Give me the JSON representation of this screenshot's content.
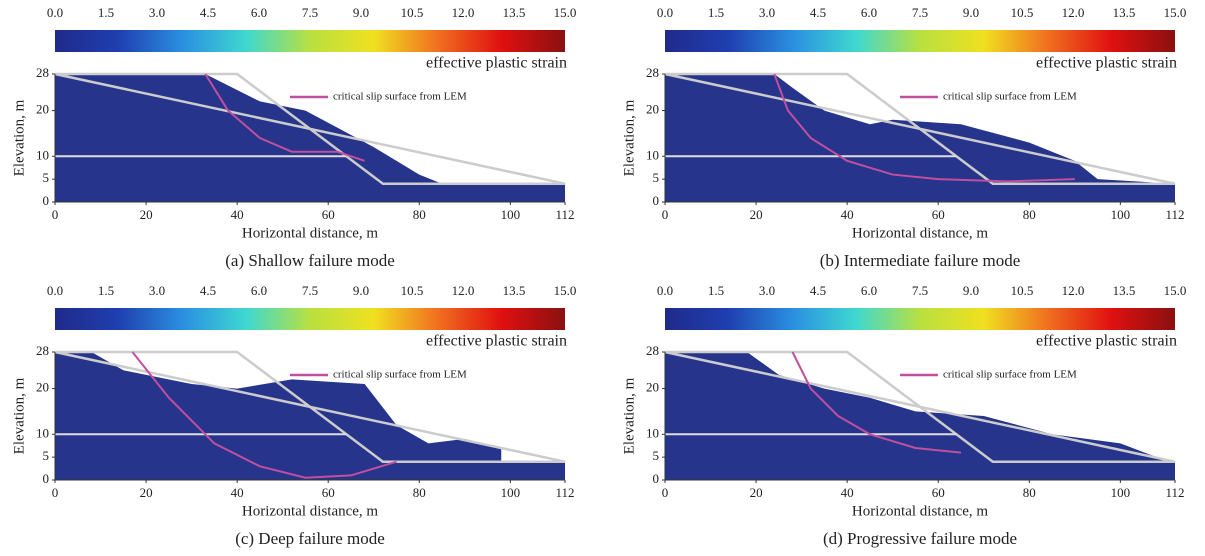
{
  "chart_data": [
    {
      "type": "line",
      "caption": "(a) Shallow failure mode",
      "x_label": "Horizontal distance, m",
      "y_label": "Elevation, m",
      "xlim": [
        0,
        112
      ],
      "ylim": [
        0,
        28
      ],
      "xticks": [
        0,
        20,
        40,
        60,
        80,
        100,
        112
      ],
      "yticks": [
        0,
        5,
        10,
        20,
        28
      ],
      "colorbar": {
        "label": "effective plastic strain",
        "lim": [
          0,
          15
        ],
        "colors": [
          "#1f2a8a",
          "#1f3fb0",
          "#2a8fe0",
          "#3fd8d0",
          "#b8e040",
          "#f0e020",
          "#f07020",
          "#e01010",
          "#8a1010"
        ],
        "ticks": [
          {
            "value": 0,
            "label": "0.0"
          },
          1.5,
          {
            "value": 3,
            "label": "3.0"
          },
          4.5,
          {
            "value": 6,
            "label": "6.0"
          },
          7.5,
          {
            "value": 9,
            "label": "9.0"
          },
          10.5,
          {
            "value": 12,
            "label": "12.0"
          },
          13.5,
          {
            "value": 15,
            "label": "15.0"
          }
        ]
      },
      "mass": {
        "color": "#26348c",
        "x": [
          0,
          112,
          112,
          85,
          80,
          70,
          55,
          45,
          33,
          0
        ],
        "values": [
          0,
          0,
          4,
          4,
          6,
          12,
          20,
          22,
          28,
          28
        ]
      },
      "outline": {
        "color": "#cccccc",
        "x": [
          0,
          40,
          72,
          112
        ],
        "values": [
          28,
          28,
          4,
          4
        ]
      },
      "interface": {
        "color": "#dddddd",
        "x": [
          0,
          64
        ],
        "values": [
          10,
          10
        ]
      },
      "series": [
        {
          "name": "critical slip surface from LEM",
          "color": "#c04fa0",
          "x": [
            33,
            38,
            45,
            52,
            62,
            68
          ],
          "values": [
            28,
            20,
            14,
            11,
            11,
            9
          ]
        }
      ]
    },
    {
      "type": "line",
      "caption": "(b) Intermediate failure mode",
      "x_label": "Horizontal distance, m",
      "y_label": "Elevation, m",
      "xlim": [
        0,
        112
      ],
      "ylim": [
        0,
        28
      ],
      "xticks": [
        0,
        20,
        40,
        60,
        80,
        100,
        112
      ],
      "yticks": [
        0,
        5,
        10,
        20,
        28
      ],
      "colorbar": {
        "label": "effective plastic strain",
        "lim": [
          0,
          15
        ],
        "colors": [
          "#1f2a8a",
          "#1f3fb0",
          "#2a8fe0",
          "#3fd8d0",
          "#b8e040",
          "#f0e020",
          "#f07020",
          "#e01010",
          "#8a1010"
        ],
        "ticks": [
          {
            "value": 0,
            "label": "0.0"
          },
          1.5,
          {
            "value": 3,
            "label": "3.0"
          },
          4.5,
          {
            "value": 6,
            "label": "6.0"
          },
          7.5,
          {
            "value": 9,
            "label": "9.0"
          },
          10.5,
          {
            "value": 12,
            "label": "12.0"
          },
          13.5,
          {
            "value": 15,
            "label": "15.0"
          }
        ]
      },
      "mass": {
        "color": "#26348c",
        "x": [
          0,
          112,
          112,
          95,
          90,
          80,
          65,
          50,
          45,
          35,
          28,
          24,
          0
        ],
        "values": [
          0,
          0,
          4,
          5,
          9,
          13,
          17,
          18,
          17,
          20,
          25,
          28,
          28
        ]
      },
      "outline": {
        "color": "#cccccc",
        "x": [
          0,
          40,
          72,
          112
        ],
        "values": [
          28,
          28,
          4,
          4
        ]
      },
      "interface": {
        "color": "#dddddd",
        "x": [
          0,
          64
        ],
        "values": [
          10,
          10
        ]
      },
      "series": [
        {
          "name": "critical slip surface from LEM",
          "color": "#c04fa0",
          "x": [
            24,
            27,
            32,
            40,
            50,
            60,
            75,
            90
          ],
          "values": [
            28,
            20,
            14,
            9,
            6,
            5,
            4.5,
            5
          ]
        }
      ]
    },
    {
      "type": "line",
      "caption": "(c) Deep failure mode",
      "x_label": "Horizontal distance, m",
      "y_label": "Elevation, m",
      "xlim": [
        0,
        112
      ],
      "ylim": [
        0,
        28
      ],
      "xticks": [
        0,
        20,
        40,
        60,
        80,
        100,
        112
      ],
      "yticks": [
        0,
        5,
        10,
        20,
        28
      ],
      "colorbar": {
        "label": "effective plastic strain",
        "lim": [
          0,
          15
        ],
        "colors": [
          "#1f2a8a",
          "#1f3fb0",
          "#2a8fe0",
          "#3fd8d0",
          "#b8e040",
          "#f0e020",
          "#f07020",
          "#e01010",
          "#8a1010"
        ],
        "ticks": [
          {
            "value": 0,
            "label": "0.0"
          },
          1.5,
          {
            "value": 3,
            "label": "3.0"
          },
          4.5,
          {
            "value": 6,
            "label": "6.0"
          },
          7.5,
          {
            "value": 9,
            "label": "9.0"
          },
          10.5,
          {
            "value": 12,
            "label": "12.0"
          },
          13.5,
          {
            "value": 15,
            "label": "15.0"
          }
        ]
      },
      "mass": {
        "color": "#26348c",
        "x": [
          0,
          112,
          112,
          98,
          98,
          90,
          82,
          75,
          68,
          52,
          40,
          30,
          15,
          8,
          0
        ],
        "values": [
          0,
          0,
          4,
          4,
          7,
          9,
          8,
          12,
          21,
          22,
          20,
          21,
          24,
          28,
          28
        ]
      },
      "outline": {
        "color": "#cccccc",
        "x": [
          0,
          40,
          72,
          112
        ],
        "values": [
          28,
          28,
          4,
          4
        ]
      },
      "interface": {
        "color": "#dddddd",
        "x": [
          0,
          64
        ],
        "values": [
          10,
          10
        ]
      },
      "series": [
        {
          "name": "critical slip surface from LEM",
          "color": "#c04fa0",
          "x": [
            17,
            25,
            35,
            45,
            55,
            65,
            75
          ],
          "values": [
            28,
            18,
            8,
            3,
            0.5,
            1,
            4
          ]
        }
      ]
    },
    {
      "type": "line",
      "caption": "(d) Progressive failure mode",
      "x_label": "Horizontal distance, m",
      "y_label": "Elevation, m",
      "xlim": [
        0,
        112
      ],
      "ylim": [
        0,
        28
      ],
      "xticks": [
        0,
        20,
        40,
        60,
        80,
        100,
        112
      ],
      "yticks": [
        0,
        5,
        10,
        20,
        28
      ],
      "colorbar": {
        "label": "effective plastic strain",
        "lim": [
          0,
          15
        ],
        "colors": [
          "#1f2a8a",
          "#1f3fb0",
          "#2a8fe0",
          "#3fd8d0",
          "#b8e040",
          "#f0e020",
          "#f07020",
          "#e01010",
          "#8a1010"
        ],
        "ticks": [
          {
            "value": 0,
            "label": "0.0"
          },
          1.5,
          {
            "value": 3,
            "label": "3.0"
          },
          4.5,
          {
            "value": 6,
            "label": "6.0"
          },
          7.5,
          {
            "value": 9,
            "label": "9.0"
          },
          10.5,
          {
            "value": 12,
            "label": "12.0"
          },
          13.5,
          {
            "value": 15,
            "label": "15.0"
          }
        ]
      },
      "mass": {
        "color": "#26348c",
        "x": [
          0,
          112,
          112,
          108,
          100,
          85,
          70,
          55,
          45,
          35,
          25,
          18,
          0
        ],
        "values": [
          0,
          0,
          4,
          5,
          8,
          10,
          14,
          15,
          18,
          20,
          23,
          28,
          28
        ]
      },
      "outline": {
        "color": "#cccccc",
        "x": [
          0,
          40,
          72,
          112
        ],
        "values": [
          28,
          28,
          4,
          4
        ]
      },
      "interface": {
        "color": "#dddddd",
        "x": [
          0,
          64
        ],
        "values": [
          10,
          10
        ]
      },
      "series": [
        {
          "name": "critical slip surface from LEM",
          "color": "#c04fa0",
          "x": [
            28,
            32,
            38,
            45,
            55,
            65
          ],
          "values": [
            28,
            20,
            14,
            10,
            7,
            6
          ]
        }
      ]
    }
  ]
}
